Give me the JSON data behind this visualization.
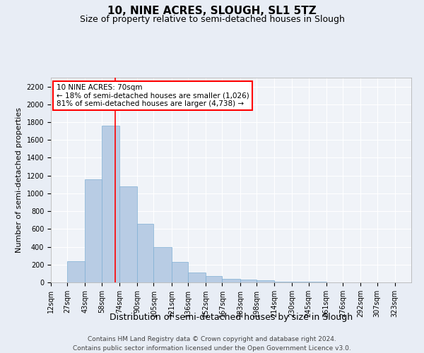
{
  "title": "10, NINE ACRES, SLOUGH, SL1 5TZ",
  "subtitle": "Size of property relative to semi-detached houses in Slough",
  "xlabel": "Distribution of semi-detached houses by size in Slough",
  "ylabel": "Number of semi-detached properties",
  "footnote1": "Contains HM Land Registry data © Crown copyright and database right 2024.",
  "footnote2": "Contains public sector information licensed under the Open Government Licence v3.0.",
  "annotation_line1": "10 NINE ACRES: 70sqm",
  "annotation_line2": "← 18% of semi-detached houses are smaller (1,026)",
  "annotation_line3": "81% of semi-detached houses are larger (4,738) →",
  "bar_color": "#b8cce4",
  "bar_edge_color": "#7fafd4",
  "red_line_x": 70,
  "annotation_box_color": "white",
  "annotation_box_edge_color": "red",
  "categories": [
    "12sqm",
    "27sqm",
    "43sqm",
    "58sqm",
    "74sqm",
    "90sqm",
    "105sqm",
    "121sqm",
    "136sqm",
    "152sqm",
    "167sqm",
    "183sqm",
    "198sqm",
    "214sqm",
    "230sqm",
    "245sqm",
    "261sqm",
    "276sqm",
    "292sqm",
    "307sqm",
    "323sqm"
  ],
  "bin_edges": [
    12,
    27,
    43,
    58,
    74,
    90,
    105,
    121,
    136,
    152,
    167,
    183,
    198,
    214,
    230,
    245,
    261,
    276,
    292,
    307,
    323,
    338
  ],
  "bar_heights": [
    0,
    240,
    1160,
    1760,
    1080,
    660,
    400,
    230,
    110,
    70,
    40,
    30,
    20,
    10,
    5,
    5,
    0,
    0,
    0,
    0,
    0
  ],
  "ylim": [
    0,
    2300
  ],
  "yticks": [
    0,
    200,
    400,
    600,
    800,
    1000,
    1200,
    1400,
    1600,
    1800,
    2000,
    2200
  ],
  "background_color": "#e8edf5",
  "plot_background_color": "#f0f3f8",
  "grid_color": "#ffffff",
  "title_fontsize": 11,
  "subtitle_fontsize": 9,
  "xlabel_fontsize": 9,
  "ylabel_fontsize": 8,
  "tick_fontsize": 7,
  "annotation_fontsize": 7.5,
  "footnote_fontsize": 6.5
}
